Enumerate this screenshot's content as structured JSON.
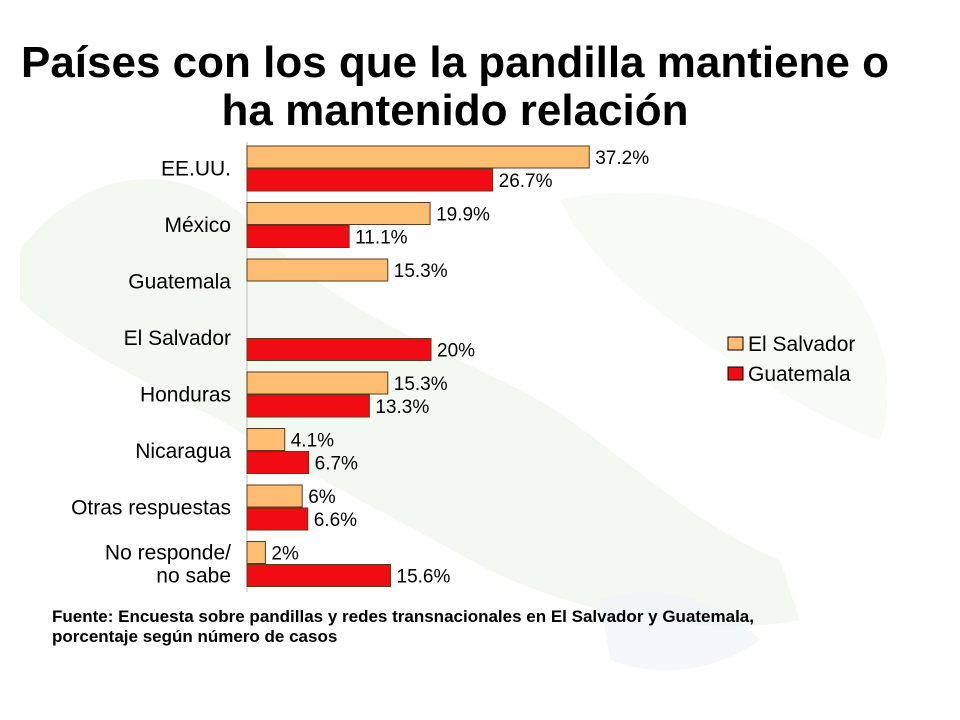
{
  "title_lines": [
    "Países con los que la pandilla mantiene o",
    "ha mantenido relación"
  ],
  "source_lines": [
    "Fuente: Encuesta sobre  pandillas y redes transnacionales en El Salvador y Guatemala,",
    "porcentaje según número de casos"
  ],
  "colors": {
    "el_salvador": "#FDBE73",
    "guatemala": "#F10B12",
    "bar_border": "#5a3a1a"
  },
  "chart_data": {
    "type": "bar",
    "orientation": "horizontal",
    "categories": [
      [
        "EE.UU."
      ],
      [
        "México"
      ],
      [
        "Guatemala"
      ],
      [
        "El Salvador"
      ],
      [
        "Honduras"
      ],
      [
        "Nicaragua"
      ],
      [
        "Otras respuestas"
      ],
      [
        "No responde/",
        "no sabe"
      ]
    ],
    "series": [
      {
        "name": "El Salvador",
        "values": [
          37.2,
          19.9,
          15.3,
          null,
          15.3,
          4.1,
          6,
          2
        ],
        "labels": [
          "37.2%",
          "19.9%",
          "15.3%",
          "",
          "15.3%",
          "4.1%",
          "6%",
          "2%"
        ]
      },
      {
        "name": "Guatemala",
        "values": [
          26.7,
          11.1,
          null,
          20,
          13.3,
          6.7,
          6.6,
          15.6
        ],
        "labels": [
          "26.7%",
          "11.1%",
          "",
          "20%",
          "13.3%",
          "6.7%",
          "6.6%",
          "15.6%"
        ]
      }
    ],
    "xlim": [
      0,
      40
    ],
    "grid": false,
    "legend_position": "right"
  }
}
